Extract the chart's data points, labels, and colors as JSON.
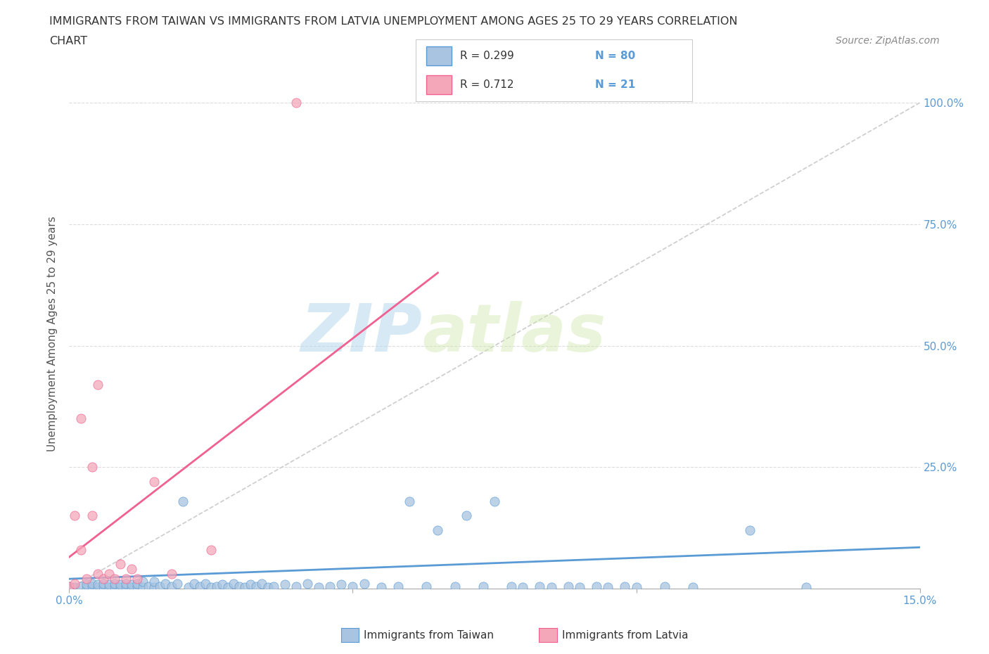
{
  "title_line1": "IMMIGRANTS FROM TAIWAN VS IMMIGRANTS FROM LATVIA UNEMPLOYMENT AMONG AGES 25 TO 29 YEARS CORRELATION",
  "title_line2": "CHART",
  "source": "Source: ZipAtlas.com",
  "ylabel": "Unemployment Among Ages 25 to 29 years",
  "xlim": [
    0.0,
    0.15
  ],
  "ylim": [
    0.0,
    1.05
  ],
  "taiwan_R": 0.299,
  "taiwan_N": 80,
  "latvia_R": 0.712,
  "latvia_N": 21,
  "taiwan_color": "#a8c4e0",
  "latvia_color": "#f4a7b9",
  "taiwan_line_color": "#5b9bd5",
  "latvia_line_color": "#f06090",
  "axis_label_color": "#5b9bd5",
  "watermark_zip": "ZIP",
  "watermark_atlas": "atlas",
  "background_color": "#ffffff",
  "grid_color": "#dddddd",
  "taiwan_scatter_x": [
    0.0,
    0.001,
    0.002,
    0.003,
    0.003,
    0.004,
    0.004,
    0.005,
    0.005,
    0.006,
    0.006,
    0.007,
    0.007,
    0.008,
    0.008,
    0.009,
    0.009,
    0.01,
    0.01,
    0.011,
    0.011,
    0.012,
    0.012,
    0.013,
    0.013,
    0.014,
    0.015,
    0.015,
    0.016,
    0.017,
    0.018,
    0.019,
    0.02,
    0.021,
    0.022,
    0.023,
    0.024,
    0.025,
    0.026,
    0.027,
    0.028,
    0.029,
    0.03,
    0.031,
    0.032,
    0.033,
    0.034,
    0.035,
    0.036,
    0.038,
    0.04,
    0.042,
    0.044,
    0.046,
    0.048,
    0.05,
    0.052,
    0.055,
    0.058,
    0.06,
    0.063,
    0.065,
    0.068,
    0.07,
    0.073,
    0.075,
    0.078,
    0.08,
    0.083,
    0.085,
    0.088,
    0.09,
    0.093,
    0.095,
    0.098,
    0.1,
    0.105,
    0.11,
    0.12,
    0.13
  ],
  "taiwan_scatter_y": [
    0.005,
    0.003,
    0.005,
    0.003,
    0.008,
    0.005,
    0.01,
    0.003,
    0.008,
    0.005,
    0.01,
    0.003,
    0.008,
    0.005,
    0.01,
    0.003,
    0.008,
    0.005,
    0.01,
    0.003,
    0.008,
    0.005,
    0.01,
    0.003,
    0.015,
    0.005,
    0.003,
    0.015,
    0.005,
    0.01,
    0.005,
    0.01,
    0.18,
    0.003,
    0.01,
    0.005,
    0.01,
    0.003,
    0.005,
    0.008,
    0.003,
    0.01,
    0.005,
    0.003,
    0.008,
    0.005,
    0.01,
    0.003,
    0.005,
    0.008,
    0.005,
    0.01,
    0.003,
    0.005,
    0.008,
    0.005,
    0.01,
    0.003,
    0.005,
    0.18,
    0.005,
    0.12,
    0.005,
    0.15,
    0.005,
    0.18,
    0.005,
    0.003,
    0.005,
    0.003,
    0.005,
    0.003,
    0.005,
    0.003,
    0.005,
    0.003,
    0.005,
    0.003,
    0.12,
    0.003
  ],
  "latvia_scatter_x": [
    0.0,
    0.001,
    0.001,
    0.002,
    0.002,
    0.003,
    0.004,
    0.004,
    0.005,
    0.005,
    0.006,
    0.007,
    0.008,
    0.009,
    0.01,
    0.011,
    0.012,
    0.015,
    0.018,
    0.025,
    0.04
  ],
  "latvia_scatter_y": [
    0.005,
    0.01,
    0.15,
    0.35,
    0.08,
    0.02,
    0.15,
    0.25,
    0.03,
    0.42,
    0.02,
    0.03,
    0.02,
    0.05,
    0.02,
    0.04,
    0.02,
    0.22,
    0.03,
    0.08,
    1.0
  ],
  "taiwan_trendline_x": [
    0.0,
    0.15
  ],
  "taiwan_trendline_y": [
    0.02,
    0.085
  ],
  "latvia_trendline_x": [
    0.0,
    0.065
  ],
  "latvia_trendline_y": [
    0.065,
    0.65
  ],
  "diag_line_x": [
    0.0,
    0.15
  ],
  "diag_line_y": [
    0.0,
    1.0
  ],
  "legend_taiwan_label": "Immigrants from Taiwan",
  "legend_latvia_label": "Immigrants from Latvia"
}
